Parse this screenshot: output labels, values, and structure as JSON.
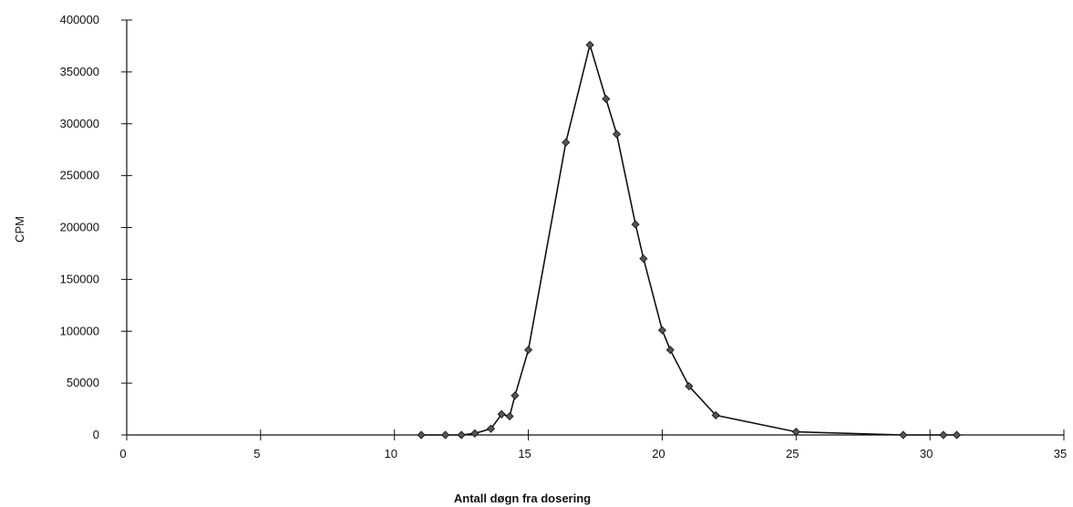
{
  "chart_data": {
    "type": "line",
    "title": "",
    "xlabel": "Antall døgn fra dosering",
    "ylabel": "CPM",
    "xlim": [
      0,
      35
    ],
    "ylim": [
      0,
      400000
    ],
    "x_ticks": [
      "0",
      "5",
      "10",
      "15",
      "20",
      "25",
      "30",
      "35"
    ],
    "y_ticks": [
      "0",
      "50000",
      "100000",
      "150000",
      "200000",
      "250000",
      "300000",
      "350000",
      "400000"
    ],
    "grid": false,
    "legend": "none",
    "series": [
      {
        "color": "#111111",
        "marker": "diamond",
        "points": [
          [
            11.0,
            0
          ],
          [
            11.9,
            0
          ],
          [
            12.5,
            0
          ],
          [
            13.0,
            1500
          ],
          [
            13.6,
            6000
          ],
          [
            14.0,
            20000
          ],
          [
            14.3,
            18000
          ],
          [
            14.5,
            38000
          ],
          [
            15.0,
            82000
          ],
          [
            16.4,
            282000
          ],
          [
            17.3,
            376000
          ],
          [
            17.9,
            324000
          ],
          [
            18.3,
            290000
          ],
          [
            19.0,
            203000
          ],
          [
            19.3,
            170000
          ],
          [
            20.0,
            101000
          ],
          [
            20.3,
            82000
          ],
          [
            21.0,
            47000
          ],
          [
            22.0,
            19000
          ],
          [
            25.0,
            3000
          ],
          [
            29.0,
            0
          ],
          [
            30.5,
            0
          ],
          [
            31.0,
            0
          ]
        ]
      }
    ]
  }
}
